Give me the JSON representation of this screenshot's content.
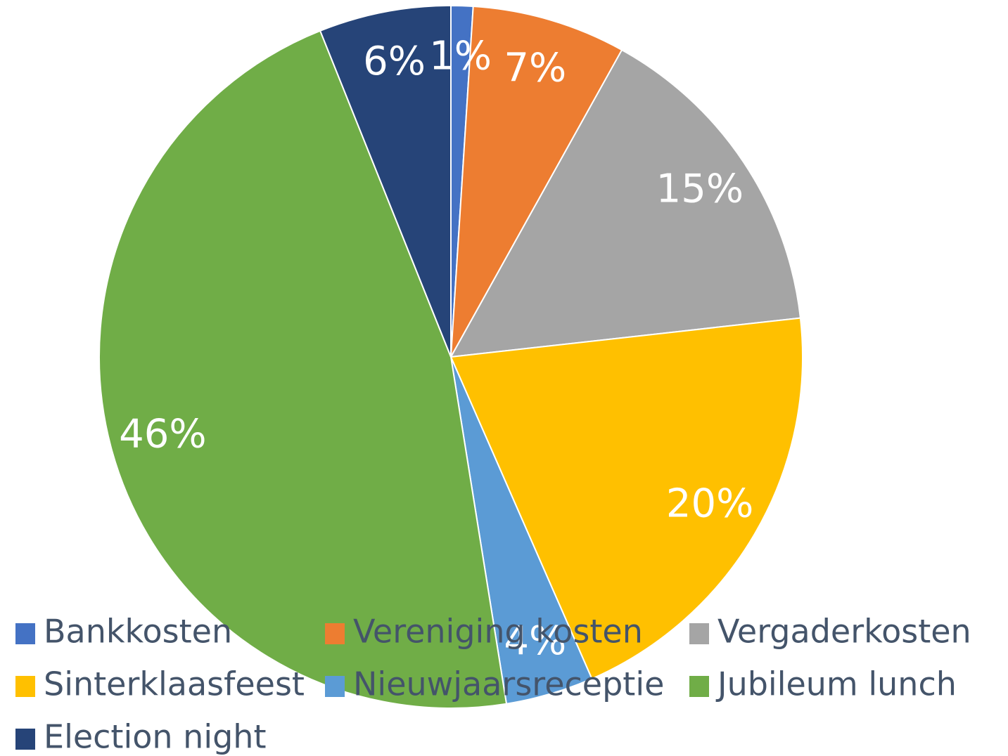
{
  "chart_data": {
    "type": "pie",
    "categories": [
      "Bankkosten",
      "Vereniging kosten",
      "Vergaderkosten",
      "Sinterklaasfeest",
      "Nieuwjaarsreceptie",
      "Jubileum lunch",
      "Election night"
    ],
    "values": [
      1,
      7,
      15,
      20,
      4,
      46,
      6
    ],
    "value_labels": [
      "1%",
      "7%",
      "15%",
      "20%",
      "4%",
      "46%",
      "6%"
    ],
    "colors": [
      "#4472c4",
      "#ed7d31",
      "#a5a5a5",
      "#ffc000",
      "#5b9bd5",
      "#70ad47",
      "#264478"
    ],
    "legend": "bottom"
  }
}
